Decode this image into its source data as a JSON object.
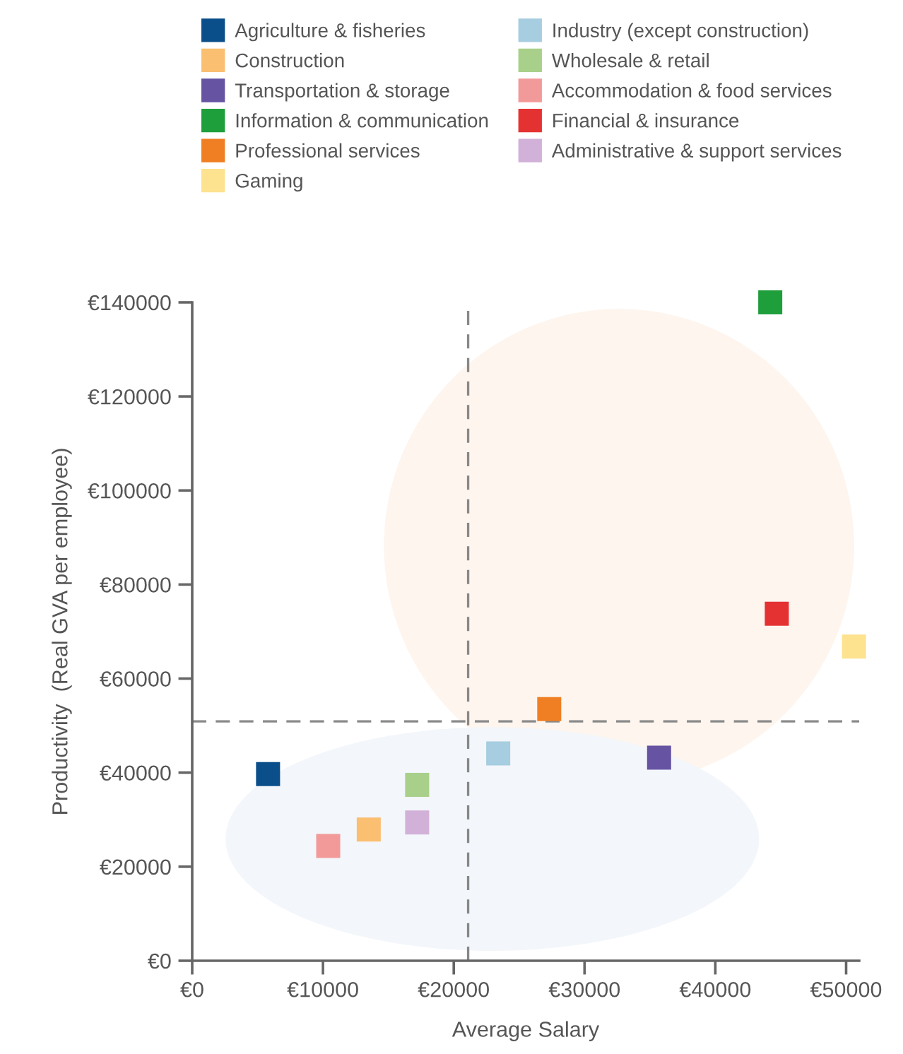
{
  "chart_data": {
    "type": "scatter",
    "xlabel": "Average Salary",
    "ylabel": "Productivity  (Real GVA per employee)",
    "xlim": [
      0,
      51000
    ],
    "ylim": [
      0,
      140000
    ],
    "xticks": [
      {
        "value": 0,
        "label": "€0"
      },
      {
        "value": 10000,
        "label": "€10000"
      },
      {
        "value": 20000,
        "label": "€20000"
      },
      {
        "value": 30000,
        "label": "€30000"
      },
      {
        "value": 40000,
        "label": "€40000"
      },
      {
        "value": 50000,
        "label": "€50000"
      }
    ],
    "yticks": [
      {
        "value": 0,
        "label": "€0"
      },
      {
        "value": 20000,
        "label": "€20000"
      },
      {
        "value": 40000,
        "label": "€40000"
      },
      {
        "value": 60000,
        "label": "€60000"
      },
      {
        "value": 80000,
        "label": "€80000"
      },
      {
        "value": 100000,
        "label": "€100000"
      },
      {
        "value": 120000,
        "label": "€120000"
      },
      {
        "value": 140000,
        "label": "€140000"
      }
    ],
    "marker": "square",
    "legend": "top",
    "grid": false,
    "ref_lines": [
      {
        "axis": "x",
        "value": 21100,
        "color": "#888888",
        "line_style": "dashed"
      },
      {
        "axis": "y",
        "value": 50900,
        "color": "#888888",
        "line_style": "dashed"
      }
    ],
    "series": [
      {
        "name": "Agriculture & fisheries",
        "color": "#0b4f8a",
        "x": [
          5800
        ],
        "values": [
          39700
        ]
      },
      {
        "name": "Construction",
        "color": "#fbbf72",
        "x": [
          13500
        ],
        "values": [
          27900
        ]
      },
      {
        "name": "Transportation & storage",
        "color": "#6654a3",
        "x": [
          35700
        ],
        "values": [
          43200
        ]
      },
      {
        "name": "Information & communication",
        "color": "#1f9e3c",
        "x": [
          44200
        ],
        "values": [
          140000
        ]
      },
      {
        "name": "Professional services",
        "color": "#f07f24",
        "x": [
          27300
        ],
        "values": [
          53500
        ]
      },
      {
        "name": "Gaming",
        "color": "#fde28f",
        "x": [
          50600
        ],
        "values": [
          66800
        ]
      },
      {
        "name": "Industry (except construction)",
        "color": "#a6cde0",
        "x": [
          23400
        ],
        "values": [
          44100
        ]
      },
      {
        "name": "Wholesale & retail",
        "color": "#a8d08a",
        "x": [
          17200
        ],
        "values": [
          37400
        ]
      },
      {
        "name": "Accommodation & food services",
        "color": "#f29a9a",
        "x": [
          10400
        ],
        "values": [
          24400
        ]
      },
      {
        "name": "Financial & insurance",
        "color": "#e43232",
        "x": [
          44700
        ],
        "values": [
          73800
        ]
      },
      {
        "name": "Administrative & support services",
        "color": "#d2b1d9",
        "x": [
          17200
        ],
        "values": [
          29400
        ]
      }
    ]
  }
}
